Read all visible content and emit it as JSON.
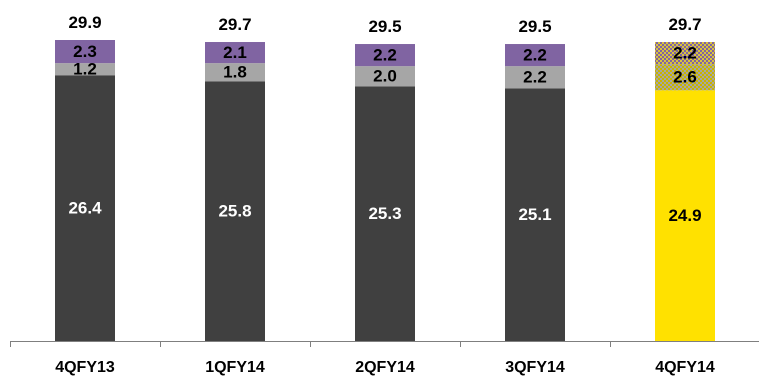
{
  "chart_data": {
    "type": "bar",
    "stacked": true,
    "categories": [
      "4QFY13",
      "1QFY14",
      "2QFY14",
      "3QFY14",
      "4QFY14"
    ],
    "totals": [
      "29.9",
      "29.7",
      "29.5",
      "29.5",
      "29.7"
    ],
    "series": [
      {
        "values": [
          26.4,
          25.8,
          25.3,
          25.1,
          24.9
        ],
        "labels": [
          "26.4",
          "25.8",
          "25.3",
          "25.1",
          "24.9"
        ]
      },
      {
        "values": [
          1.2,
          1.8,
          2.0,
          2.2,
          2.6
        ],
        "labels": [
          "1.2",
          "1.8",
          "2.0",
          "2.2",
          "2.6"
        ]
      },
      {
        "values": [
          2.3,
          2.1,
          2.2,
          2.2,
          2.2
        ],
        "labels": [
          "2.3",
          "2.1",
          "2.2",
          "2.2",
          "2.2"
        ]
      }
    ],
    "ylim": [
      0,
      29.9
    ],
    "grid": false,
    "legend": "none",
    "colors": {
      "base": "#404040",
      "middle": "#a6a6a6",
      "top": "#8064a2",
      "highlight": "#ffe100",
      "highlight_pattern_dot": "#c8b400",
      "top_pattern_dot": "#d9c43c",
      "axis": "#7f7f7f"
    },
    "label_colors": [
      "#ffffff",
      "#000000",
      "#000000"
    ],
    "highlight_label_color": "#000000",
    "highlight_category_index": 4
  }
}
